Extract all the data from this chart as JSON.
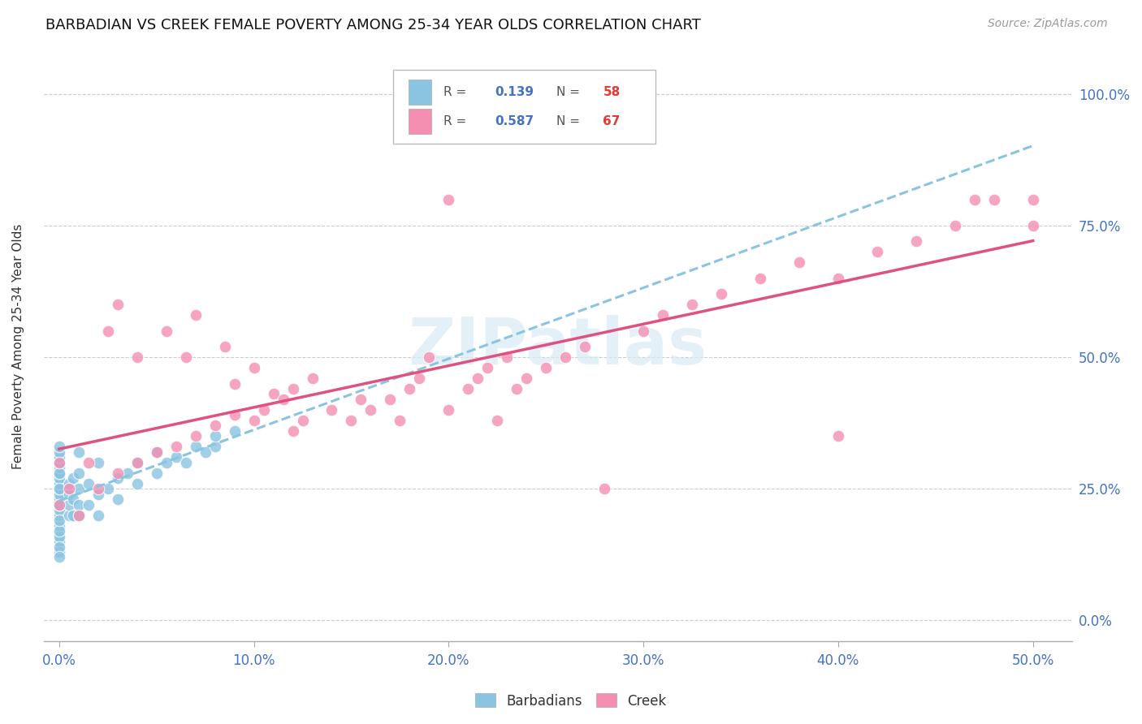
{
  "title": "BARBADIAN VS CREEK FEMALE POVERTY AMONG 25-34 YEAR OLDS CORRELATION CHART",
  "source": "Source: ZipAtlas.com",
  "xlim": [
    -0.008,
    0.52
  ],
  "ylim": [
    -0.04,
    1.08
  ],
  "x_tick_vals": [
    0.0,
    0.1,
    0.2,
    0.3,
    0.4,
    0.5
  ],
  "y_tick_vals": [
    0.0,
    0.25,
    0.5,
    0.75,
    1.0
  ],
  "barbadians_R": 0.139,
  "barbadians_N": 58,
  "creek_R": 0.587,
  "creek_N": 67,
  "barbadians_color": "#89C4E1",
  "creek_color": "#F48FB1",
  "trendline_barb_color": "#89C4E1",
  "trendline_creek_color": "#E05080",
  "watermark_color": "#D8EAF5",
  "watermark_alpha": 0.7,
  "barb_x": [
    0.0,
    0.0,
    0.0,
    0.0,
    0.0,
    0.0,
    0.0,
    0.0,
    0.0,
    0.0,
    0.0,
    0.0,
    0.0,
    0.0,
    0.0,
    0.0,
    0.0,
    0.0,
    0.0,
    0.0,
    0.0,
    0.0,
    0.0,
    0.0,
    0.0,
    0.005,
    0.005,
    0.005,
    0.005,
    0.007,
    0.007,
    0.007,
    0.01,
    0.01,
    0.01,
    0.01,
    0.01,
    0.015,
    0.015,
    0.02,
    0.02,
    0.02,
    0.025,
    0.03,
    0.03,
    0.035,
    0.04,
    0.04,
    0.05,
    0.05,
    0.055,
    0.06,
    0.065,
    0.07,
    0.075,
    0.08,
    0.08,
    0.09
  ],
  "barb_y": [
    0.18,
    0.2,
    0.21,
    0.22,
    0.23,
    0.24,
    0.25,
    0.26,
    0.27,
    0.28,
    0.29,
    0.3,
    0.31,
    0.32,
    0.33,
    0.15,
    0.16,
    0.17,
    0.19,
    0.22,
    0.25,
    0.28,
    0.13,
    0.14,
    0.12,
    0.2,
    0.22,
    0.24,
    0.26,
    0.2,
    0.23,
    0.27,
    0.2,
    0.22,
    0.25,
    0.28,
    0.32,
    0.22,
    0.26,
    0.2,
    0.24,
    0.3,
    0.25,
    0.23,
    0.27,
    0.28,
    0.26,
    0.3,
    0.28,
    0.32,
    0.3,
    0.31,
    0.3,
    0.33,
    0.32,
    0.33,
    0.35,
    0.36
  ],
  "creek_x": [
    0.0,
    0.0,
    0.005,
    0.01,
    0.015,
    0.02,
    0.025,
    0.03,
    0.03,
    0.04,
    0.04,
    0.05,
    0.055,
    0.06,
    0.065,
    0.07,
    0.07,
    0.08,
    0.085,
    0.09,
    0.09,
    0.1,
    0.1,
    0.105,
    0.11,
    0.115,
    0.12,
    0.12,
    0.125,
    0.13,
    0.14,
    0.15,
    0.155,
    0.16,
    0.17,
    0.175,
    0.18,
    0.185,
    0.19,
    0.2,
    0.2,
    0.21,
    0.215,
    0.22,
    0.225,
    0.23,
    0.235,
    0.24,
    0.25,
    0.26,
    0.27,
    0.28,
    0.3,
    0.31,
    0.325,
    0.34,
    0.36,
    0.38,
    0.4,
    0.4,
    0.42,
    0.44,
    0.46,
    0.47,
    0.48,
    0.5,
    0.5
  ],
  "creek_y": [
    0.22,
    0.3,
    0.25,
    0.2,
    0.3,
    0.25,
    0.55,
    0.28,
    0.6,
    0.3,
    0.5,
    0.32,
    0.55,
    0.33,
    0.5,
    0.35,
    0.58,
    0.37,
    0.52,
    0.39,
    0.45,
    0.38,
    0.48,
    0.4,
    0.43,
    0.42,
    0.36,
    0.44,
    0.38,
    0.46,
    0.4,
    0.38,
    0.42,
    0.4,
    0.42,
    0.38,
    0.44,
    0.46,
    0.5,
    0.4,
    0.8,
    0.44,
    0.46,
    0.48,
    0.38,
    0.5,
    0.44,
    0.46,
    0.48,
    0.5,
    0.52,
    0.25,
    0.55,
    0.58,
    0.6,
    0.62,
    0.65,
    0.68,
    0.35,
    0.65,
    0.7,
    0.72,
    0.75,
    0.8,
    0.8,
    0.75,
    0.8
  ]
}
